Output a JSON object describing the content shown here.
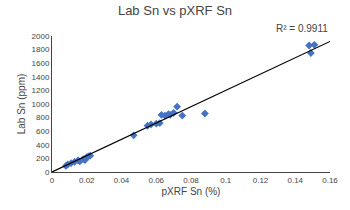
{
  "chart_data": {
    "type": "scatter",
    "title": "Lab Sn vs pXRF Sn",
    "xlabel": "pXRF Sn (%)",
    "ylabel": "Lab Sn (ppm)",
    "annotation": "R² = 0.9911",
    "series": [
      {
        "type": "scatter",
        "color": "#4472C4",
        "marker": "diamond",
        "x": [
          0.008,
          0.009,
          0.011,
          0.013,
          0.015,
          0.016,
          0.018,
          0.019,
          0.02,
          0.021,
          0.022,
          0.047,
          0.055,
          0.057,
          0.06,
          0.062,
          0.063,
          0.065,
          0.067,
          0.068,
          0.07,
          0.072,
          0.075,
          0.088,
          0.148,
          0.149,
          0.151
        ],
        "values": [
          90,
          110,
          130,
          150,
          170,
          155,
          190,
          175,
          220,
          230,
          240,
          540,
          680,
          700,
          710,
          720,
          840,
          830,
          850,
          840,
          870,
          960,
          830,
          860,
          1860,
          1750,
          1870
        ]
      },
      {
        "type": "line",
        "color": "#000000",
        "line_style": "solid",
        "x": [
          0.0,
          0.16
        ],
        "values": [
          0.0,
          1920
        ]
      }
    ],
    "xlim": [
      0,
      0.16
    ],
    "ylim": [
      0,
      2000
    ],
    "xticks": [
      0,
      0.02,
      0.04,
      0.06,
      0.08,
      0.1,
      0.12,
      0.14,
      0.16
    ],
    "yticks": [
      0,
      200,
      400,
      600,
      800,
      1000,
      1200,
      1400,
      1600,
      1800,
      2000
    ],
    "grid": false
  }
}
